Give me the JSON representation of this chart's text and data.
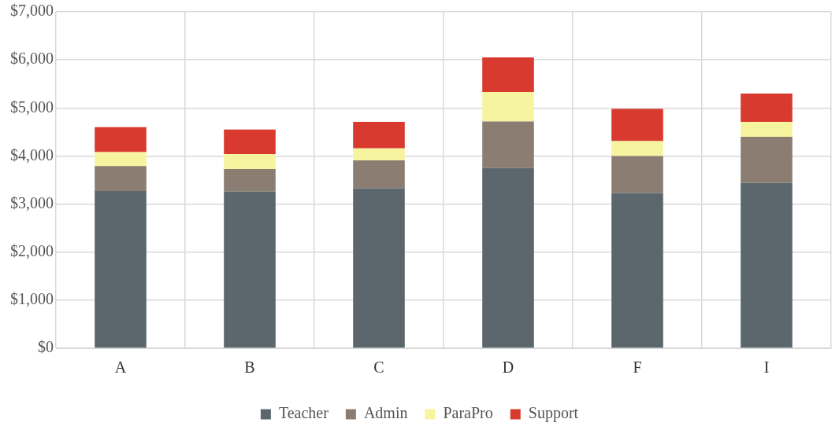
{
  "chart_data": {
    "type": "bar",
    "stacked": true,
    "categories": [
      "A",
      "B",
      "C",
      "D",
      "F",
      "I"
    ],
    "series": [
      {
        "name": "Teacher",
        "color": "#5b676d",
        "values": [
          3270,
          3260,
          3330,
          3750,
          3230,
          3440
        ]
      },
      {
        "name": "Admin",
        "color": "#8b7d72",
        "values": [
          520,
          470,
          580,
          970,
          770,
          960
        ]
      },
      {
        "name": "ParaPro",
        "color": "#f7f4a0",
        "values": [
          290,
          310,
          250,
          610,
          310,
          310
        ]
      },
      {
        "name": "Support",
        "color": "#d93a2f",
        "values": [
          520,
          510,
          550,
          720,
          670,
          590
        ]
      }
    ],
    "ylim": [
      0,
      7000
    ],
    "yticks": [
      {
        "value": 0,
        "label": "$0"
      },
      {
        "value": 1000,
        "label": "$1,000"
      },
      {
        "value": 2000,
        "label": "$2,000"
      },
      {
        "value": 3000,
        "label": "$3,000"
      },
      {
        "value": 4000,
        "label": "$4,000"
      },
      {
        "value": 5000,
        "label": "$5,000"
      },
      {
        "value": 6000,
        "label": "$6,000"
      },
      {
        "value": 7000,
        "label": "$7,000"
      }
    ],
    "grid": true,
    "legend": "bottom"
  }
}
